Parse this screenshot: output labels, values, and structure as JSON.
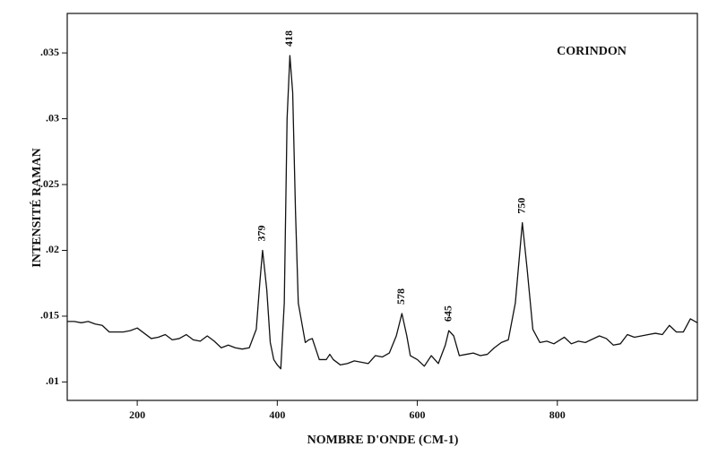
{
  "chart_data": {
    "type": "line",
    "title": "CORINDON",
    "xlabel": "NOMBRE D'ONDE (CM-1)",
    "ylabel": "INTENSITÉ RAMAN",
    "color": "#111111",
    "xlim": [
      100,
      1000
    ],
    "ylim": [
      0.0086,
      0.038
    ],
    "xticks": [
      200,
      400,
      600,
      800
    ],
    "yticks": [
      {
        "value": 0.01,
        "label": ".01"
      },
      {
        "value": 0.015,
        "label": ".015"
      },
      {
        "value": 0.02,
        "label": ".02"
      },
      {
        "value": 0.025,
        "label": ".025"
      },
      {
        "value": 0.03,
        "label": ".03"
      },
      {
        "value": 0.035,
        "label": ".035"
      }
    ],
    "x": [
      100,
      110,
      120,
      130,
      140,
      150,
      160,
      170,
      180,
      190,
      200,
      210,
      220,
      230,
      240,
      250,
      260,
      270,
      280,
      290,
      300,
      310,
      320,
      330,
      340,
      350,
      360,
      370,
      375,
      379,
      385,
      390,
      395,
      400,
      405,
      410,
      414,
      418,
      422,
      426,
      430,
      435,
      440,
      445,
      450,
      455,
      460,
      470,
      475,
      480,
      490,
      500,
      510,
      520,
      530,
      540,
      550,
      560,
      570,
      578,
      585,
      590,
      600,
      610,
      620,
      630,
      640,
      645,
      652,
      660,
      670,
      680,
      690,
      700,
      710,
      720,
      730,
      740,
      750,
      757,
      765,
      775,
      785,
      795,
      810,
      820,
      830,
      840,
      860,
      870,
      880,
      890,
      900,
      910,
      920,
      930,
      940,
      950,
      960,
      970,
      980,
      990,
      1000
    ],
    "values": [
      0.0146,
      0.0146,
      0.0145,
      0.0146,
      0.0144,
      0.0143,
      0.0138,
      0.0138,
      0.0138,
      0.0139,
      0.0141,
      0.0137,
      0.0133,
      0.0134,
      0.0136,
      0.0132,
      0.0133,
      0.0136,
      0.0132,
      0.0131,
      0.0135,
      0.0131,
      0.0126,
      0.0128,
      0.0126,
      0.0125,
      0.0126,
      0.014,
      0.0175,
      0.02,
      0.017,
      0.013,
      0.0117,
      0.0113,
      0.011,
      0.016,
      0.03,
      0.0348,
      0.032,
      0.023,
      0.016,
      0.0145,
      0.013,
      0.0132,
      0.0133,
      0.0125,
      0.0117,
      0.0117,
      0.0121,
      0.0117,
      0.0113,
      0.0114,
      0.0116,
      0.0115,
      0.0114,
      0.012,
      0.0119,
      0.0122,
      0.0135,
      0.0152,
      0.0135,
      0.012,
      0.0117,
      0.0112,
      0.012,
      0.0114,
      0.0128,
      0.0139,
      0.0135,
      0.012,
      0.0121,
      0.0122,
      0.012,
      0.0121,
      0.0126,
      0.013,
      0.0132,
      0.016,
      0.0221,
      0.0185,
      0.014,
      0.013,
      0.0131,
      0.0129,
      0.0134,
      0.0129,
      0.0131,
      0.013,
      0.0135,
      0.0133,
      0.0128,
      0.0129,
      0.0136,
      0.0134,
      0.0135,
      0.0136,
      0.0137,
      0.0136,
      0.0143,
      0.0138,
      0.0138,
      0.0148,
      0.0145
    ],
    "annotations": [
      {
        "text": "379",
        "x": 379,
        "y": 0.02
      },
      {
        "text": "418",
        "x": 418,
        "y": 0.0348
      },
      {
        "text": "578",
        "x": 578,
        "y": 0.0152
      },
      {
        "text": "645",
        "x": 645,
        "y": 0.0139
      },
      {
        "text": "750",
        "x": 750,
        "y": 0.0221
      }
    ]
  }
}
